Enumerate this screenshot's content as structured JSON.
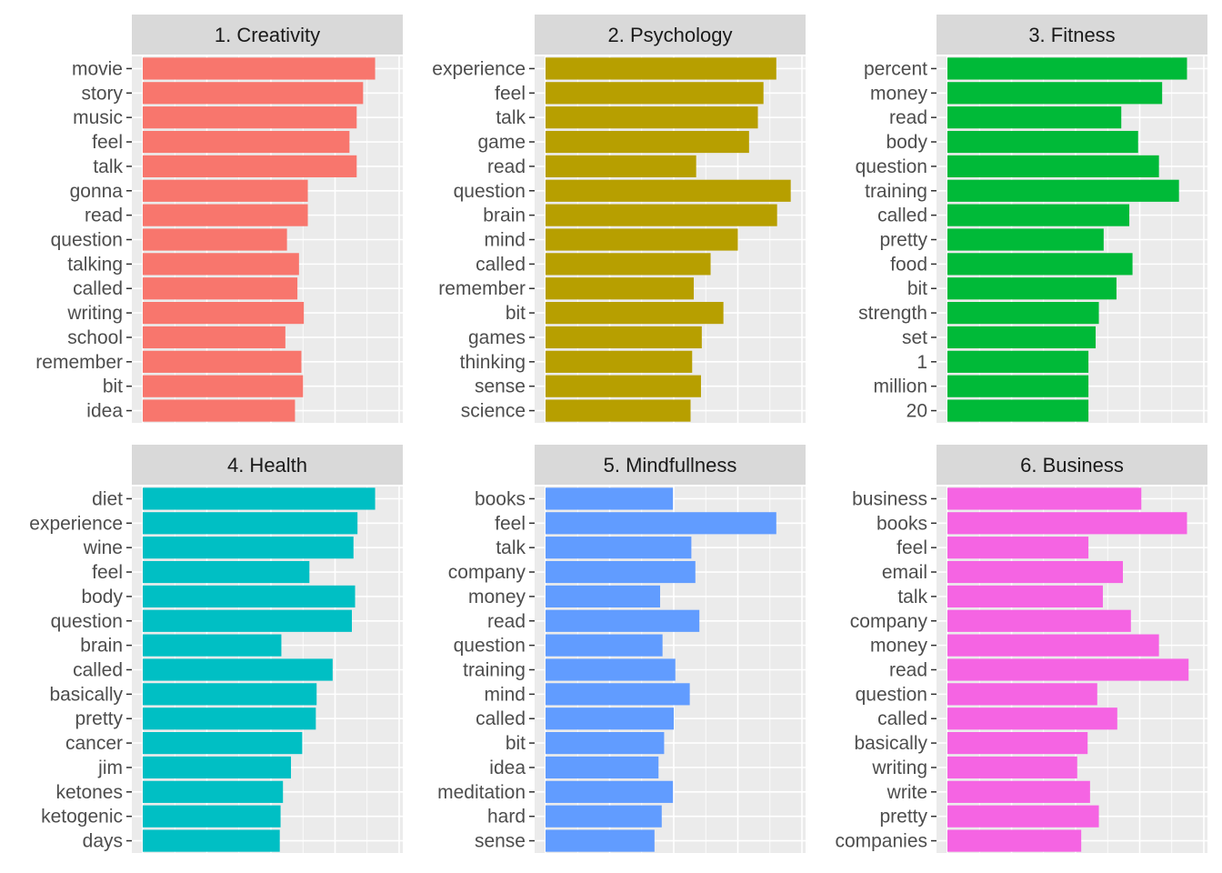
{
  "chart_data": [
    {
      "type": "bar",
      "orientation": "horizontal",
      "title": "1. Creativity",
      "color": "#F8766D",
      "categories": [
        "movie",
        "story",
        "music",
        "feel",
        "talk",
        "gonna",
        "read",
        "question",
        "talking",
        "called",
        "writing",
        "school",
        "remember",
        "bit",
        "idea"
      ],
      "values": [
        0.0029,
        0.00275,
        0.00267,
        0.00258,
        0.00267,
        0.00206,
        0.00206,
        0.0018,
        0.00195,
        0.00193,
        0.00201,
        0.00178,
        0.00198,
        0.002,
        0.0019
      ],
      "xlim": [
        0,
        0.0032
      ],
      "grid": true
    },
    {
      "type": "bar",
      "orientation": "horizontal",
      "title": "2. Psychology",
      "color": "#B79F00",
      "categories": [
        "experience",
        "feel",
        "talk",
        "game",
        "read",
        "question",
        "brain",
        "mind",
        "called",
        "remember",
        "bit",
        "games",
        "thinking",
        "sense",
        "science"
      ],
      "values": [
        0.00288,
        0.00272,
        0.00265,
        0.00254,
        0.00188,
        0.00306,
        0.00289,
        0.0024,
        0.00206,
        0.00185,
        0.00222,
        0.00195,
        0.00183,
        0.00194,
        0.00181
      ],
      "xlim": [
        0,
        0.0032
      ],
      "grid": true
    },
    {
      "type": "bar",
      "orientation": "horizontal",
      "title": "3. Fitness",
      "color": "#00BA38",
      "categories": [
        "percent",
        "money",
        "read",
        "body",
        "question",
        "training",
        "called",
        "pretty",
        "food",
        "bit",
        "strength",
        "set",
        "1",
        "million",
        "20"
      ],
      "values": [
        0.00299,
        0.00268,
        0.00217,
        0.00238,
        0.00264,
        0.00289,
        0.00227,
        0.00195,
        0.00231,
        0.00211,
        0.00189,
        0.00185,
        0.00176,
        0.00176,
        0.00176
      ],
      "xlim": [
        0,
        0.0032
      ],
      "grid": true
    },
    {
      "type": "bar",
      "orientation": "horizontal",
      "title": "4. Health",
      "color": "#00BFC4",
      "categories": [
        "diet",
        "experience",
        "wine",
        "feel",
        "body",
        "question",
        "brain",
        "called",
        "basically",
        "pretty",
        "cancer",
        "jim",
        "ketones",
        "ketogenic",
        "days"
      ],
      "values": [
        0.0029,
        0.00268,
        0.00263,
        0.00208,
        0.00265,
        0.00261,
        0.00173,
        0.00237,
        0.00217,
        0.00216,
        0.00199,
        0.00185,
        0.00175,
        0.00172,
        0.00171
      ],
      "xlim": [
        0,
        0.0032
      ],
      "grid": true
    },
    {
      "type": "bar",
      "orientation": "horizontal",
      "title": "5. Mindfullness",
      "color": "#619CFF",
      "categories": [
        "books",
        "feel",
        "talk",
        "company",
        "money",
        "read",
        "question",
        "training",
        "mind",
        "called",
        "bit",
        "idea",
        "meditation",
        "hard",
        "sense"
      ],
      "values": [
        0.00159,
        0.00288,
        0.00182,
        0.00187,
        0.00143,
        0.00192,
        0.00146,
        0.00162,
        0.0018,
        0.0016,
        0.00148,
        0.00141,
        0.00159,
        0.00145,
        0.00136
      ],
      "xlim": [
        0,
        0.0032
      ],
      "grid": true
    },
    {
      "type": "bar",
      "orientation": "horizontal",
      "title": "6. Business",
      "color": "#F564E3",
      "categories": [
        "business",
        "books",
        "feel",
        "email",
        "talk",
        "company",
        "money",
        "read",
        "question",
        "called",
        "basically",
        "writing",
        "write",
        "pretty",
        "companies"
      ],
      "values": [
        0.00242,
        0.00299,
        0.00176,
        0.00219,
        0.00194,
        0.00229,
        0.00264,
        0.00301,
        0.00187,
        0.00212,
        0.00175,
        0.00162,
        0.00178,
        0.00189,
        0.00167
      ],
      "xlim": [
        0,
        0.0032
      ],
      "grid": true
    }
  ]
}
